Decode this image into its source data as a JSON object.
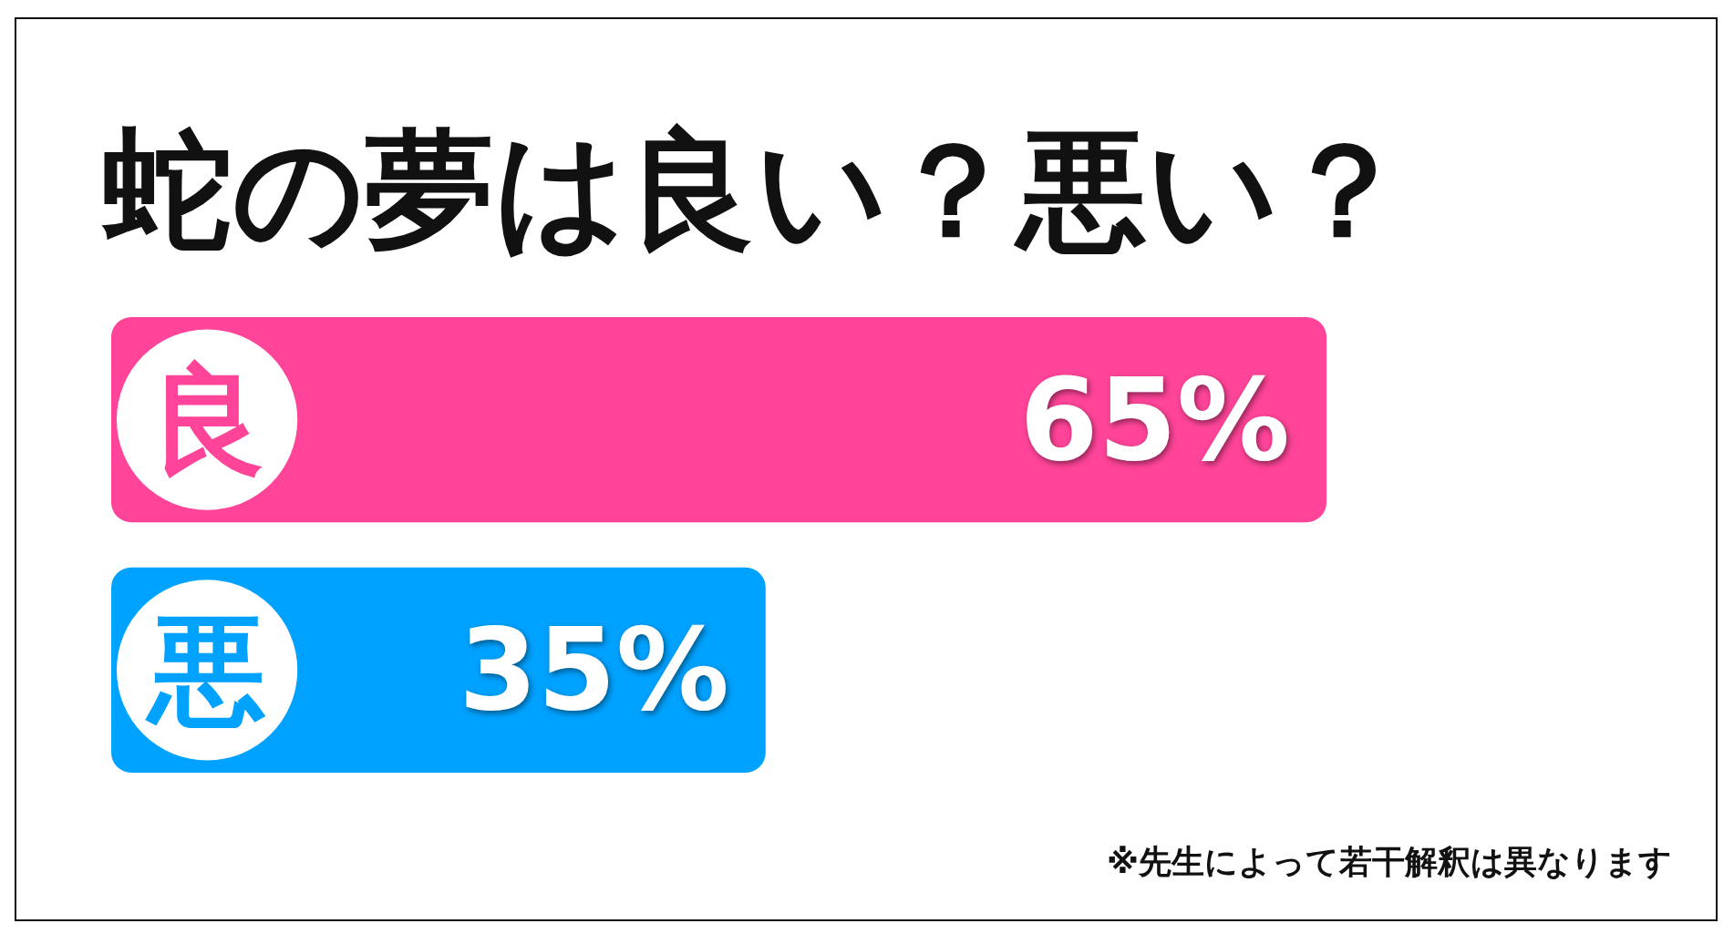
{
  "chart_data": {
    "type": "bar",
    "orientation": "horizontal",
    "title": "蛇の夢は良い？悪い？",
    "categories": [
      "良",
      "悪"
    ],
    "values": [
      65,
      35
    ],
    "colors": [
      "#ff4499",
      "#00a2ff"
    ],
    "value_labels": [
      "65%",
      "35%"
    ],
    "annotations": [
      "※先生によって若干解釈は異なります"
    ]
  }
}
